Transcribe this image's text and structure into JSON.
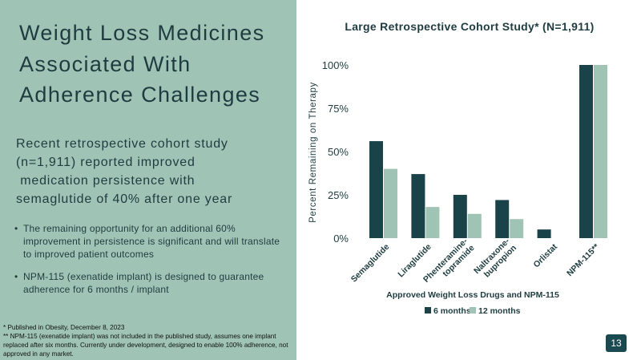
{
  "slide": {
    "title_lines": [
      "Weight Loss Medicines",
      "Associated With",
      "Adherence Challenges"
    ],
    "subtitle_lines": [
      "Recent retrospective cohort study",
      "(n=1,911) reported improved",
      " medication persistence with",
      "semaglutide of 40% after one year"
    ],
    "bullets": [
      "The remaining opportunity for an additional 60% improvement in persistence is significant and will translate to improved patient outcomes",
      "NPM-115 (exenatide implant) is designed to guarantee adherence for 6 months / implant"
    ],
    "bullet_symbol": "•",
    "footnotes": [
      "* Published in Obesity, December 8, 2023",
      "** NPM-115 (exenatide implant) was not included in the published study, assumes one implant replaced after six months. Currently under development, designed to enable 100% adherence, not approved in any market."
    ],
    "page_number": "13"
  },
  "colors": {
    "panel": "#9fc4b5",
    "dark_series": "#1a4349",
    "light_series": "#9fc4b5",
    "title_text": "#1e3c40"
  },
  "chart_data": {
    "type": "bar",
    "title": "Large Retrospective Cohort Study* (N=1,911)",
    "xlabel": "Approved Weight Loss Drugs and NPM-115",
    "ylabel": "Percent Remaining on Therapy",
    "categories": [
      "Semaglutide",
      "Liraglutide",
      "Phenteramine-topramide",
      "Naltraxone-bupropion",
      "Orlistat",
      "NPM-115**"
    ],
    "category_label_lines": [
      [
        "Semaglutide"
      ],
      [
        "Liraglutide"
      ],
      [
        "Phenteramine-",
        "topramide"
      ],
      [
        "Naltraxone-",
        "bupropion"
      ],
      [
        "Orlistat"
      ],
      [
        "NPM-115**"
      ]
    ],
    "series": [
      {
        "name": "6 months",
        "values": [
          56,
          37,
          25,
          22,
          5,
          100
        ]
      },
      {
        "name": "12 months",
        "values": [
          40,
          18,
          14,
          11,
          null,
          100
        ]
      }
    ],
    "ylim": [
      0,
      100
    ],
    "yticks": [
      0,
      25,
      50,
      75,
      100
    ],
    "ytick_labels": [
      "0%",
      "25%",
      "50%",
      "75%",
      "100%"
    ],
    "grid": false,
    "legend_position": "bottom"
  }
}
